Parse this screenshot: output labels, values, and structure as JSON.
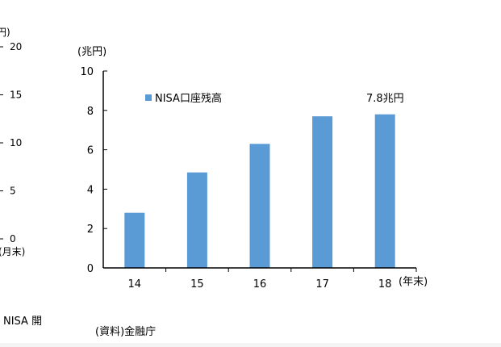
{
  "left_partial": {
    "top_unit": "円)",
    "ticks": [
      "20",
      "15",
      "10",
      "5",
      "0"
    ],
    "bottom_unit": "(月末)",
    "note": "NISA 開"
  },
  "source": "(資料)金融庁",
  "chart_data": {
    "type": "bar",
    "ylabel": "(兆円)",
    "xlabel": "(年末)",
    "categories": [
      "14",
      "15",
      "16",
      "17",
      "18"
    ],
    "series": [
      {
        "name": "NISA口座残高",
        "values": [
          2.8,
          4.85,
          6.3,
          7.7,
          7.8
        ]
      }
    ],
    "ylim": [
      0,
      10
    ],
    "yticks": [
      "0",
      "2",
      "4",
      "6",
      "8",
      "10"
    ],
    "annotation": "7.8兆円",
    "legend_position": "top-left",
    "bar_color": "#5b9bd5",
    "grid": false
  }
}
